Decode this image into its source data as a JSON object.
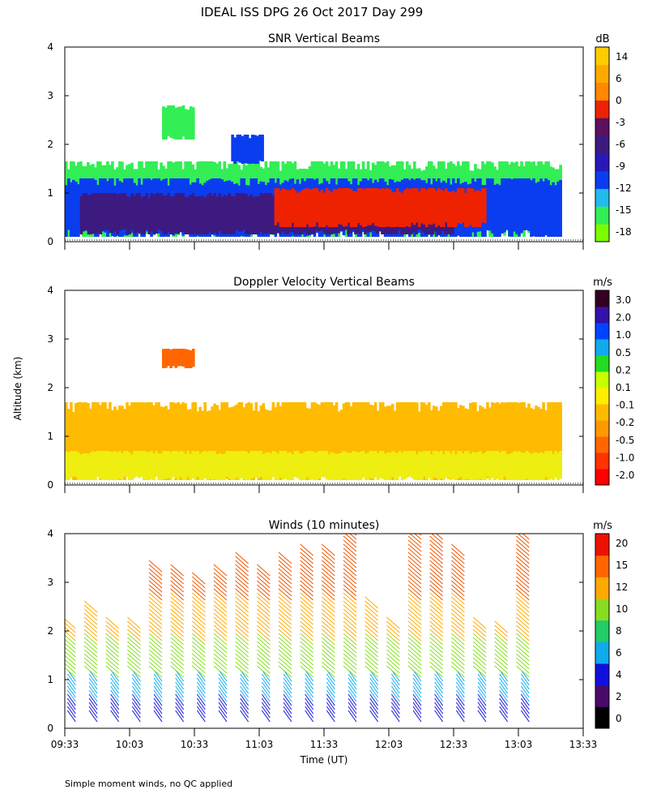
{
  "title": "IDEAL ISS DPG  26 Oct 2017 Day 299",
  "ylabel": "Altitude (km)",
  "xlabel": "Time (UT)",
  "footnote": "Simple moment winds, no QC applied",
  "chart_data": [
    {
      "type": "heatmap",
      "title": "SNR Vertical Beams",
      "ylabel": "Altitude (km)",
      "y_ticks": [
        "0",
        "1",
        "2",
        "3",
        "4"
      ],
      "ylim": [
        0,
        4
      ],
      "xlim": [
        "09:33",
        "13:33"
      ],
      "colorbar": {
        "unit": "dB",
        "labels": [
          "14",
          "6",
          "0",
          "-3",
          "-6",
          "-9",
          "-12",
          "-15",
          "-18"
        ],
        "colors": [
          "#7cfc00",
          "#33ee55",
          "#22bbee",
          "#0a3df0",
          "#2818b8",
          "#3d1a80",
          "#5b1060",
          "#ee2200",
          "#ff8800",
          "#ffaa00",
          "#ffcc00"
        ]
      },
      "regions": [
        {
          "x": [
            "09:33",
            "13:23"
          ],
          "y": [
            0.1,
            1.65
          ],
          "snr_db": -15
        },
        {
          "x": [
            "09:33",
            "13:23"
          ],
          "y": [
            0.1,
            1.3
          ],
          "snr_db": -9
        },
        {
          "x": [
            "09:40",
            "12:33"
          ],
          "y": [
            0.15,
            1.0
          ],
          "snr_db": -4
        },
        {
          "x": [
            "11:10",
            "12:48"
          ],
          "y": [
            0.3,
            1.1
          ],
          "snr_db": 0
        },
        {
          "x": [
            "10:18",
            "10:33"
          ],
          "y": [
            2.1,
            2.8
          ],
          "snr_db": -15
        },
        {
          "x": [
            "10:50",
            "11:05"
          ],
          "y": [
            1.6,
            2.2
          ],
          "snr_db": -9
        }
      ]
    },
    {
      "type": "heatmap",
      "title": "Doppler Velocity Vertical Beams",
      "ylabel": "Altitude (km)",
      "y_ticks": [
        "0",
        "1",
        "2",
        "3",
        "4"
      ],
      "ylim": [
        0,
        4
      ],
      "xlim": [
        "09:33",
        "13:33"
      ],
      "colorbar": {
        "unit": "m/s",
        "labels": [
          "3.0",
          "2.0",
          "1.0",
          "0.5",
          "0.2",
          "0.1",
          "-0.1",
          "-0.2",
          "-0.5",
          "-1.0",
          "-2.0"
        ],
        "colors": [
          "#ff0000",
          "#ff3300",
          "#ff6600",
          "#ff9900",
          "#ffbb00",
          "#ffee00",
          "#c8ff00",
          "#22dd22",
          "#11aaee",
          "#0044ff",
          "#3311aa",
          "#330022"
        ]
      },
      "regions": [
        {
          "x": [
            "09:33",
            "13:23"
          ],
          "y": [
            0.1,
            1.7
          ],
          "velocity_ms": -0.2
        },
        {
          "x": [
            "09:33",
            "13:23"
          ],
          "y": [
            0.1,
            0.7
          ],
          "velocity_ms": 0.0
        },
        {
          "x": [
            "10:18",
            "10:33"
          ],
          "y": [
            2.4,
            2.8
          ],
          "velocity_ms": -0.5
        }
      ]
    },
    {
      "type": "scatter",
      "title": "Winds (10 minutes)",
      "ylabel": "Altitude (km)",
      "y_ticks": [
        "0",
        "1",
        "2",
        "3",
        "4"
      ],
      "ylim": [
        0,
        4
      ],
      "xlim": [
        "09:33",
        "13:33"
      ],
      "x_ticks": [
        "09:33",
        "10:03",
        "10:33",
        "11:03",
        "11:33",
        "12:03",
        "12:33",
        "13:03",
        "13:33"
      ],
      "colorbar": {
        "unit": "m/s",
        "labels": [
          "20",
          "15",
          "12",
          "10",
          "8",
          "6",
          "4",
          "2",
          "0"
        ],
        "colors": [
          "#000000",
          "#4a0a6a",
          "#1010dd",
          "#11aaee",
          "#22cc66",
          "#88dd22",
          "#ffaa00",
          "#ff6600",
          "#ee1100"
        ]
      },
      "profiles": [
        {
          "time": "09:38",
          "top_km": 2.1
        },
        {
          "time": "09:48",
          "top_km": 2.4
        },
        {
          "time": "09:58",
          "top_km": 2.1
        },
        {
          "time": "10:08",
          "top_km": 2.1
        },
        {
          "time": "10:18",
          "top_km": 3.3
        },
        {
          "time": "10:28",
          "top_km": 3.2
        },
        {
          "time": "10:38",
          "top_km": 3.0
        },
        {
          "time": "10:48",
          "top_km": 3.2
        },
        {
          "time": "10:58",
          "top_km": 3.4
        },
        {
          "time": "11:08",
          "top_km": 3.2
        },
        {
          "time": "11:18",
          "top_km": 3.4
        },
        {
          "time": "11:28",
          "top_km": 3.6
        },
        {
          "time": "11:38",
          "top_km": 3.6
        },
        {
          "time": "11:48",
          "top_km": 4.0
        },
        {
          "time": "11:58",
          "top_km": 2.5
        },
        {
          "time": "12:08",
          "top_km": 2.1
        },
        {
          "time": "12:18",
          "top_km": 4.2
        },
        {
          "time": "12:28",
          "top_km": 3.9
        },
        {
          "time": "12:38",
          "top_km": 3.6
        },
        {
          "time": "12:48",
          "top_km": 2.1
        },
        {
          "time": "12:58",
          "top_km": 2.0
        },
        {
          "time": "13:08",
          "top_km": 3.9
        }
      ]
    }
  ]
}
